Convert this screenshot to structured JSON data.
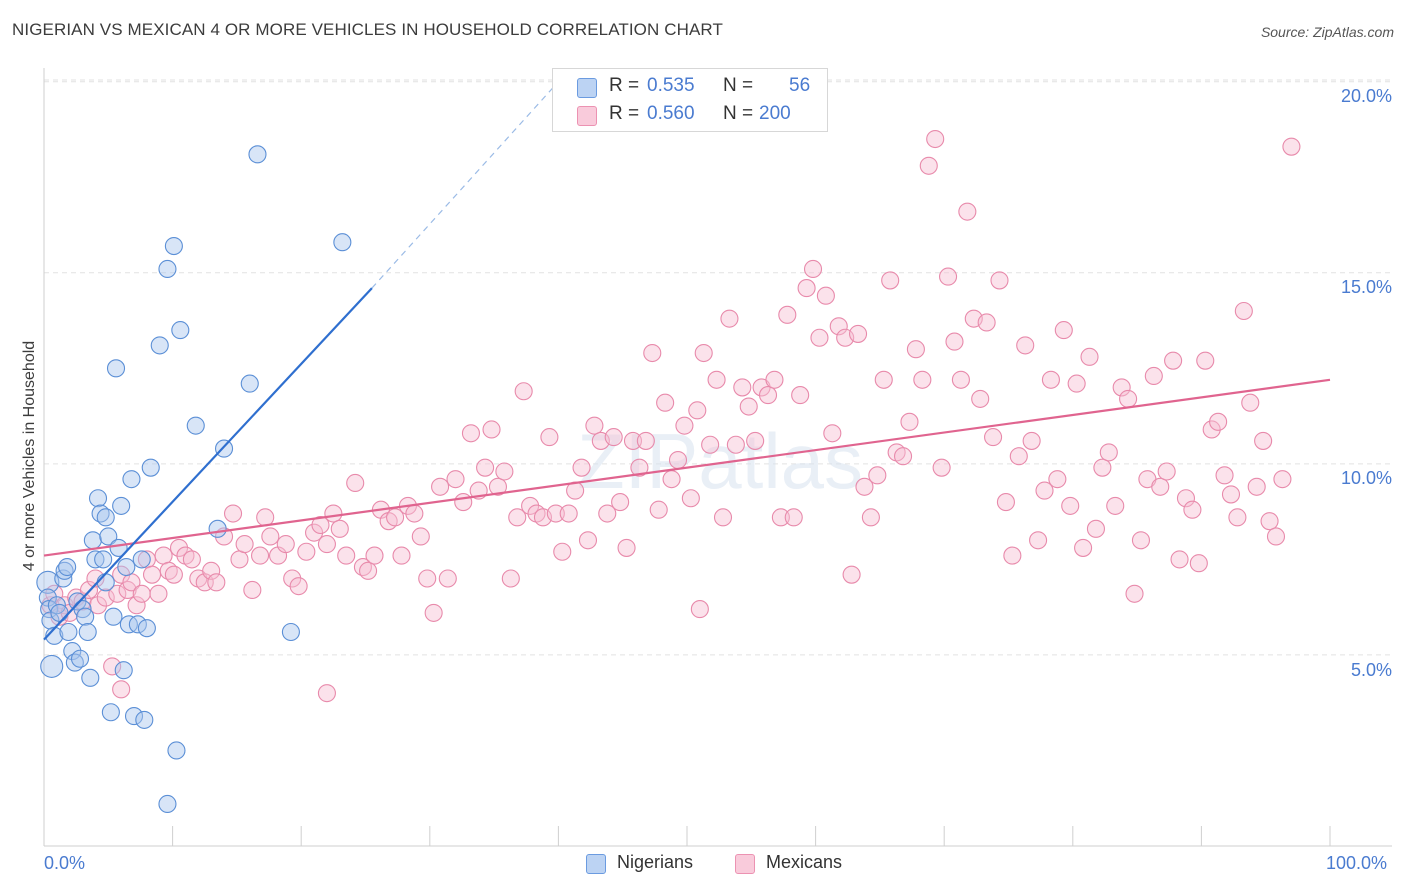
{
  "header": {
    "title": "NIGERIAN VS MEXICAN 4 OR MORE VEHICLES IN HOUSEHOLD CORRELATION CHART",
    "source": "Source: ZipAtlas.com"
  },
  "watermark": "ZIPatlas",
  "legend_top": {
    "rows": [
      {
        "r_label": "R =",
        "r_value": "0.535",
        "n_label": "N =",
        "n_value": "56"
      },
      {
        "r_label": "R =",
        "r_value": "0.560",
        "n_label": "N =",
        "n_value": "200"
      }
    ]
  },
  "legend_bottom": {
    "items": [
      {
        "label": "Nigerians"
      },
      {
        "label": "Mexicans"
      }
    ]
  },
  "colors": {
    "nigerians_fill": "#a9c6ee",
    "nigerians_stroke": "#5b8fd6",
    "nigerians_line": "#2f6fcf",
    "mexicans_fill": "#f7bfd2",
    "mexicans_stroke": "#e88aab",
    "mexicans_line": "#e0648f",
    "axis_text": "#4a7bd0",
    "grid": "#e2e2e2"
  },
  "chart_data": {
    "type": "scatter",
    "title": "NIGERIAN VS MEXICAN 4 OR MORE VEHICLES IN HOUSEHOLD CORRELATION CHART",
    "xlabel": "",
    "ylabel": "4 or more Vehicles in Household",
    "x_tick_labels": [
      "0.0%",
      "100.0%"
    ],
    "y_tick_labels": [
      "5.0%",
      "10.0%",
      "15.0%",
      "20.0%"
    ],
    "xlim": [
      0,
      100
    ],
    "ylim": [
      0,
      20.5
    ],
    "grid": true,
    "legend_placement": "bottom",
    "series": [
      {
        "name": "Nigerians",
        "r": 0.535,
        "n": 56,
        "trend": {
          "x": [
            0,
            25.5
          ],
          "y": [
            5.4,
            14.6
          ],
          "dashed_extension_to": [
            40,
            20.0
          ]
        },
        "points": [
          [
            0.3,
            6.9
          ],
          [
            0.3,
            6.5
          ],
          [
            0.4,
            6.2
          ],
          [
            0.5,
            5.9
          ],
          [
            0.6,
            4.7
          ],
          [
            0.8,
            5.5
          ],
          [
            1.0,
            6.3
          ],
          [
            1.2,
            6.1
          ],
          [
            1.5,
            7.0
          ],
          [
            1.6,
            7.2
          ],
          [
            1.8,
            7.3
          ],
          [
            1.9,
            5.6
          ],
          [
            2.2,
            5.1
          ],
          [
            2.4,
            4.8
          ],
          [
            2.6,
            6.4
          ],
          [
            2.8,
            4.9
          ],
          [
            3.0,
            6.2
          ],
          [
            3.2,
            6.0
          ],
          [
            3.4,
            5.6
          ],
          [
            3.6,
            4.4
          ],
          [
            3.8,
            8.0
          ],
          [
            4.0,
            7.5
          ],
          [
            4.2,
            9.1
          ],
          [
            4.4,
            8.7
          ],
          [
            4.6,
            7.5
          ],
          [
            4.8,
            8.6
          ],
          [
            5.0,
            8.1
          ],
          [
            5.2,
            3.5
          ],
          [
            5.4,
            6.0
          ],
          [
            5.6,
            12.5
          ],
          [
            5.8,
            7.8
          ],
          [
            6.0,
            8.9
          ],
          [
            6.2,
            4.6
          ],
          [
            6.4,
            7.3
          ],
          [
            6.6,
            5.8
          ],
          [
            6.8,
            9.6
          ],
          [
            7.0,
            3.4
          ],
          [
            7.3,
            5.8
          ],
          [
            7.6,
            7.5
          ],
          [
            7.8,
            3.3
          ],
          [
            8.0,
            5.7
          ],
          [
            8.3,
            9.9
          ],
          [
            9.0,
            13.1
          ],
          [
            9.6,
            15.1
          ],
          [
            10.1,
            15.7
          ],
          [
            10.6,
            13.5
          ],
          [
            10.3,
            2.5
          ],
          [
            9.6,
            1.1
          ],
          [
            11.8,
            11.0
          ],
          [
            13.5,
            8.3
          ],
          [
            14.0,
            10.4
          ],
          [
            16.0,
            12.1
          ],
          [
            16.6,
            18.1
          ],
          [
            19.2,
            5.6
          ],
          [
            23.2,
            15.8
          ],
          [
            4.8,
            6.9
          ]
        ]
      },
      {
        "name": "Mexicans",
        "r": 0.56,
        "n": 200,
        "trend": {
          "x": [
            0,
            100
          ],
          "y": [
            7.6,
            12.2
          ]
        },
        "points": [
          [
            0.5,
            6.3
          ],
          [
            0.8,
            6.6
          ],
          [
            1.2,
            6.0
          ],
          [
            1.6,
            6.3
          ],
          [
            2.0,
            6.1
          ],
          [
            2.5,
            6.5
          ],
          [
            3.0,
            6.4
          ],
          [
            3.5,
            6.7
          ],
          [
            4.0,
            7.0
          ],
          [
            4.2,
            6.3
          ],
          [
            4.8,
            6.5
          ],
          [
            5.3,
            4.7
          ],
          [
            5.7,
            6.6
          ],
          [
            6.0,
            7.1
          ],
          [
            6.5,
            6.7
          ],
          [
            6.8,
            6.9
          ],
          [
            7.2,
            6.3
          ],
          [
            7.6,
            6.6
          ],
          [
            8.0,
            7.5
          ],
          [
            8.4,
            7.1
          ],
          [
            8.9,
            6.6
          ],
          [
            9.3,
            7.6
          ],
          [
            9.7,
            7.2
          ],
          [
            10.1,
            7.1
          ],
          [
            10.5,
            7.8
          ],
          [
            11.0,
            7.6
          ],
          [
            11.5,
            7.5
          ],
          [
            12.0,
            7.0
          ],
          [
            12.5,
            6.9
          ],
          [
            13.0,
            7.2
          ],
          [
            13.4,
            6.9
          ],
          [
            14.0,
            8.1
          ],
          [
            14.7,
            8.7
          ],
          [
            15.2,
            7.5
          ],
          [
            15.6,
            7.9
          ],
          [
            16.2,
            6.7
          ],
          [
            16.8,
            7.6
          ],
          [
            17.2,
            8.6
          ],
          [
            17.6,
            8.1
          ],
          [
            18.2,
            7.6
          ],
          [
            18.8,
            7.9
          ],
          [
            19.3,
            7.0
          ],
          [
            19.8,
            6.8
          ],
          [
            20.4,
            7.7
          ],
          [
            21.0,
            8.2
          ],
          [
            21.5,
            8.4
          ],
          [
            22.0,
            7.9
          ],
          [
            22.5,
            8.7
          ],
          [
            23.0,
            8.3
          ],
          [
            23.5,
            7.6
          ],
          [
            24.2,
            9.5
          ],
          [
            24.8,
            7.3
          ],
          [
            25.2,
            7.2
          ],
          [
            25.7,
            7.6
          ],
          [
            26.2,
            8.8
          ],
          [
            26.8,
            8.5
          ],
          [
            27.3,
            8.6
          ],
          [
            27.8,
            7.6
          ],
          [
            28.3,
            8.9
          ],
          [
            28.8,
            8.7
          ],
          [
            29.3,
            8.1
          ],
          [
            29.8,
            7.0
          ],
          [
            30.3,
            6.1
          ],
          [
            30.8,
            9.4
          ],
          [
            31.4,
            7.0
          ],
          [
            32.0,
            9.6
          ],
          [
            32.6,
            9.0
          ],
          [
            33.2,
            10.8
          ],
          [
            33.8,
            9.3
          ],
          [
            34.3,
            9.9
          ],
          [
            34.8,
            10.9
          ],
          [
            35.3,
            9.4
          ],
          [
            35.8,
            9.8
          ],
          [
            36.3,
            7.0
          ],
          [
            36.8,
            8.6
          ],
          [
            37.3,
            11.9
          ],
          [
            37.8,
            8.9
          ],
          [
            38.3,
            8.7
          ],
          [
            38.8,
            8.6
          ],
          [
            39.3,
            10.7
          ],
          [
            39.8,
            8.7
          ],
          [
            40.3,
            7.7
          ],
          [
            40.8,
            8.7
          ],
          [
            41.3,
            9.3
          ],
          [
            41.8,
            9.9
          ],
          [
            42.3,
            8.0
          ],
          [
            42.8,
            11.0
          ],
          [
            43.3,
            10.6
          ],
          [
            43.8,
            8.7
          ],
          [
            44.3,
            10.7
          ],
          [
            44.8,
            9.0
          ],
          [
            45.3,
            7.8
          ],
          [
            45.8,
            10.6
          ],
          [
            46.3,
            9.9
          ],
          [
            46.8,
            10.6
          ],
          [
            47.3,
            12.9
          ],
          [
            47.8,
            8.8
          ],
          [
            48.3,
            11.6
          ],
          [
            48.8,
            9.6
          ],
          [
            49.3,
            10.1
          ],
          [
            49.8,
            11.0
          ],
          [
            50.3,
            9.1
          ],
          [
            50.8,
            11.4
          ],
          [
            51.3,
            12.9
          ],
          [
            51.8,
            10.5
          ],
          [
            52.3,
            12.2
          ],
          [
            52.8,
            8.6
          ],
          [
            53.3,
            13.8
          ],
          [
            53.8,
            10.5
          ],
          [
            54.3,
            12.0
          ],
          [
            54.8,
            11.5
          ],
          [
            55.3,
            10.6
          ],
          [
            55.8,
            12.0
          ],
          [
            56.3,
            11.8
          ],
          [
            56.8,
            12.2
          ],
          [
            57.3,
            8.6
          ],
          [
            57.8,
            13.9
          ],
          [
            58.3,
            8.6
          ],
          [
            58.8,
            11.8
          ],
          [
            59.3,
            14.6
          ],
          [
            59.8,
            15.1
          ],
          [
            60.3,
            13.3
          ],
          [
            60.8,
            14.4
          ],
          [
            61.3,
            10.8
          ],
          [
            61.8,
            13.6
          ],
          [
            62.3,
            13.3
          ],
          [
            62.8,
            7.1
          ],
          [
            63.3,
            13.4
          ],
          [
            63.8,
            9.4
          ],
          [
            64.3,
            8.6
          ],
          [
            64.8,
            9.7
          ],
          [
            65.3,
            12.2
          ],
          [
            65.8,
            14.8
          ],
          [
            66.3,
            10.3
          ],
          [
            66.8,
            10.2
          ],
          [
            67.3,
            11.1
          ],
          [
            67.8,
            13.0
          ],
          [
            68.3,
            12.2
          ],
          [
            68.8,
            17.8
          ],
          [
            69.3,
            18.5
          ],
          [
            69.8,
            9.9
          ],
          [
            70.3,
            14.9
          ],
          [
            70.8,
            13.2
          ],
          [
            71.3,
            12.2
          ],
          [
            71.8,
            16.6
          ],
          [
            72.3,
            13.8
          ],
          [
            72.8,
            11.7
          ],
          [
            73.3,
            13.7
          ],
          [
            73.8,
            10.7
          ],
          [
            74.3,
            14.8
          ],
          [
            74.8,
            9.0
          ],
          [
            75.3,
            7.6
          ],
          [
            75.8,
            10.2
          ],
          [
            76.3,
            13.1
          ],
          [
            76.8,
            10.6
          ],
          [
            77.3,
            8.0
          ],
          [
            77.8,
            9.3
          ],
          [
            78.3,
            12.2
          ],
          [
            78.8,
            9.6
          ],
          [
            79.3,
            13.5
          ],
          [
            79.8,
            8.9
          ],
          [
            80.3,
            12.1
          ],
          [
            80.8,
            7.8
          ],
          [
            81.3,
            12.8
          ],
          [
            81.8,
            8.3
          ],
          [
            82.3,
            9.9
          ],
          [
            82.8,
            10.3
          ],
          [
            83.3,
            8.9
          ],
          [
            83.8,
            12.0
          ],
          [
            84.3,
            11.7
          ],
          [
            84.8,
            6.6
          ],
          [
            85.3,
            8.0
          ],
          [
            85.8,
            9.6
          ],
          [
            86.3,
            12.3
          ],
          [
            86.8,
            9.4
          ],
          [
            87.3,
            9.8
          ],
          [
            87.8,
            12.7
          ],
          [
            88.3,
            7.5
          ],
          [
            88.8,
            9.1
          ],
          [
            89.3,
            8.8
          ],
          [
            89.8,
            7.4
          ],
          [
            90.3,
            12.7
          ],
          [
            90.8,
            10.9
          ],
          [
            91.3,
            11.1
          ],
          [
            91.8,
            9.7
          ],
          [
            92.3,
            9.2
          ],
          [
            92.8,
            8.6
          ],
          [
            93.3,
            14.0
          ],
          [
            93.8,
            11.6
          ],
          [
            94.3,
            9.4
          ],
          [
            94.8,
            10.6
          ],
          [
            95.3,
            8.5
          ],
          [
            95.8,
            8.1
          ],
          [
            96.3,
            9.6
          ],
          [
            97.0,
            18.3
          ],
          [
            6.0,
            4.1
          ],
          [
            22.0,
            4.0
          ],
          [
            51.0,
            6.2
          ]
        ]
      }
    ]
  }
}
